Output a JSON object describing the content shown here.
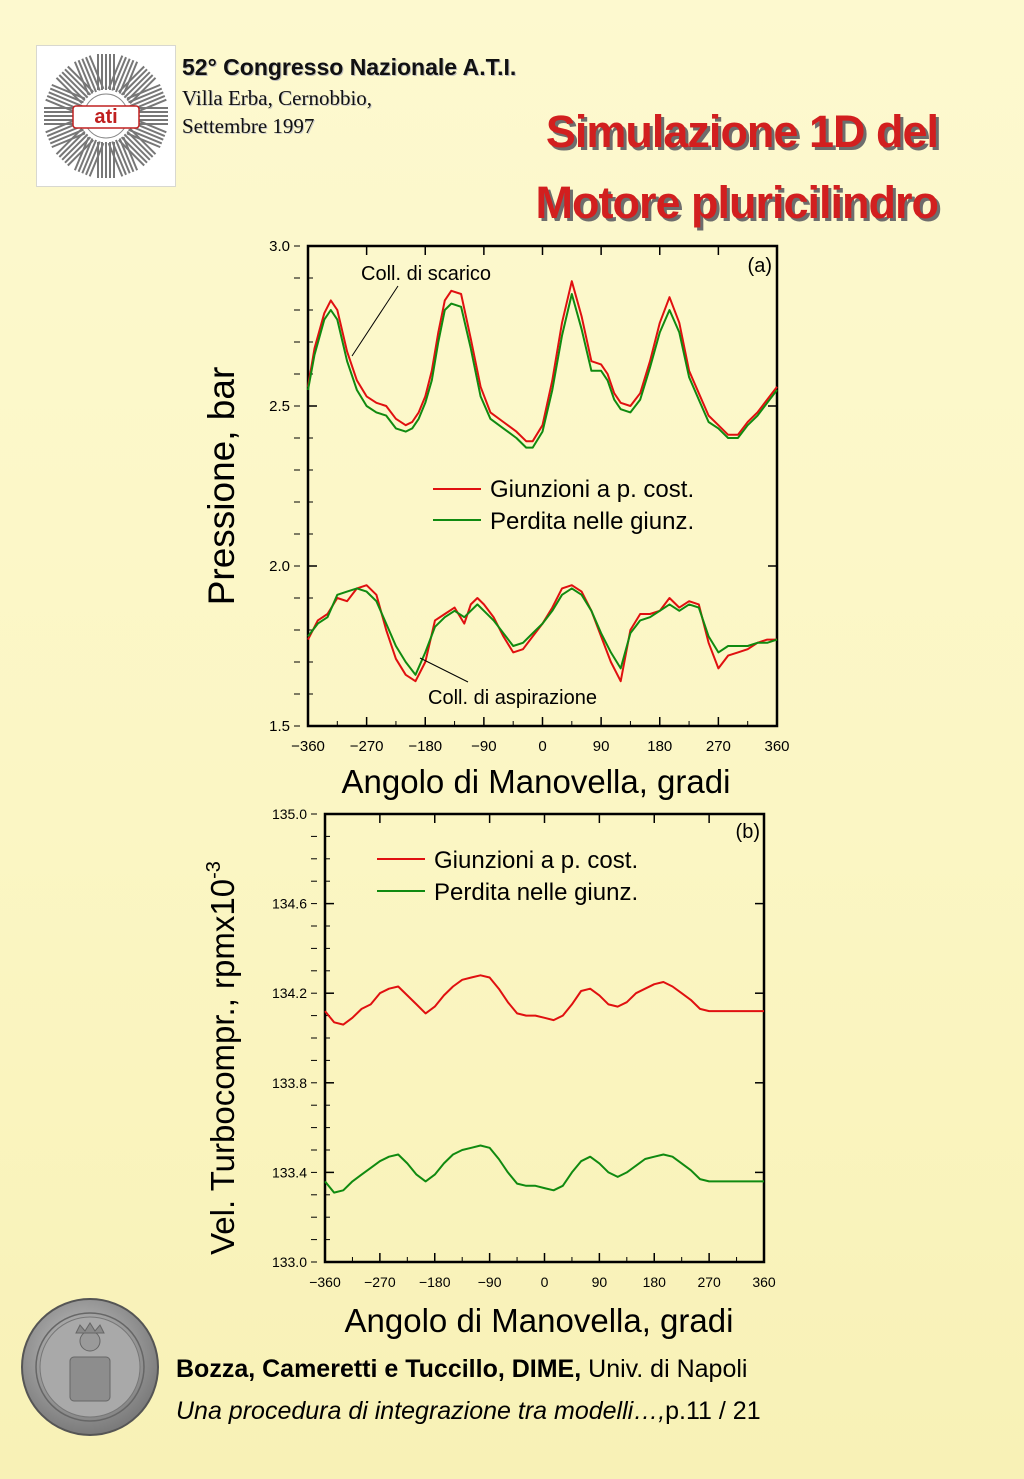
{
  "header": {
    "conference": "52° Congresso Nazionale A.T.I.",
    "location": "Villa Erba, Cernobbio,",
    "date": "Settembre 1997",
    "logo_text": "ati",
    "title_line1": "Simulazione 1D del",
    "title_line2": "Motore pluricilindro"
  },
  "footer": {
    "authors": "Bozza, Cameretti e Tuccillo, DIME,",
    "university": " Univ. di Napoli",
    "paper": "Una procedura di integrazione tra modelli…,",
    "page": "p.11 / 21"
  },
  "colors": {
    "red": "#e01010",
    "green": "#108a10",
    "title": "#d21f1f"
  },
  "chart_data": [
    {
      "type": "line",
      "panel": "(a)",
      "xlabel": "Angolo di Manovella, gradi",
      "ylabel": "Pressione, bar",
      "xlim": [
        -360,
        360
      ],
      "ylim": [
        1.5,
        3.0
      ],
      "xticks": [
        -360,
        -270,
        -180,
        -90,
        0,
        90,
        180,
        270,
        360
      ],
      "xtick_labels": [
        "−360",
        "−270",
        "−180",
        "−90",
        "0",
        "90",
        "180",
        "270",
        "360"
      ],
      "yticks": [
        1.5,
        2.0,
        2.5,
        3.0
      ],
      "ytick_labels": [
        "1.5",
        "2.0",
        "2.5",
        "3.0"
      ],
      "legend": [
        "Giunzioni a p. cost.",
        "Perdita nelle giunz."
      ],
      "legend_position": "center-right",
      "annotations": [
        "Coll. di scarico",
        "Coll. di aspirazione"
      ],
      "series": [
        {
          "name": "Giunzioni a p. cost.",
          "color": "#e01010",
          "x": [
            -360,
            -350,
            -335,
            -325,
            -315,
            -300,
            -285,
            -270,
            -255,
            -240,
            -225,
            -210,
            -200,
            -190,
            -180,
            -170,
            -160,
            -150,
            -140,
            -125,
            -110,
            -95,
            -80,
            -60,
            -40,
            -25,
            -15,
            0,
            15,
            30,
            45,
            60,
            75,
            90,
            100,
            110,
            120,
            135,
            150,
            165,
            180,
            195,
            210,
            225,
            240,
            255,
            270,
            285,
            300,
            315,
            330,
            345,
            360
          ],
          "values": [
            2.56,
            2.68,
            2.79,
            2.83,
            2.8,
            2.67,
            2.58,
            2.53,
            2.51,
            2.5,
            2.46,
            2.44,
            2.45,
            2.48,
            2.53,
            2.61,
            2.73,
            2.83,
            2.86,
            2.85,
            2.71,
            2.56,
            2.48,
            2.45,
            2.42,
            2.39,
            2.39,
            2.44,
            2.58,
            2.76,
            2.89,
            2.78,
            2.64,
            2.63,
            2.6,
            2.54,
            2.51,
            2.5,
            2.54,
            2.64,
            2.76,
            2.84,
            2.76,
            2.61,
            2.54,
            2.47,
            2.44,
            2.41,
            2.41,
            2.45,
            2.48,
            2.52,
            2.56
          ]
        },
        {
          "name": "Perdita nelle giunz.",
          "color": "#108a10",
          "x": [
            -360,
            -350,
            -335,
            -325,
            -315,
            -300,
            -285,
            -270,
            -255,
            -240,
            -225,
            -210,
            -200,
            -190,
            -180,
            -170,
            -160,
            -150,
            -140,
            -125,
            -110,
            -95,
            -80,
            -60,
            -40,
            -25,
            -15,
            0,
            15,
            30,
            45,
            60,
            75,
            90,
            100,
            110,
            120,
            135,
            150,
            165,
            180,
            195,
            210,
            225,
            240,
            255,
            270,
            285,
            300,
            315,
            330,
            345,
            360
          ],
          "values": [
            2.55,
            2.66,
            2.77,
            2.8,
            2.77,
            2.64,
            2.55,
            2.5,
            2.48,
            2.47,
            2.43,
            2.42,
            2.43,
            2.46,
            2.51,
            2.58,
            2.7,
            2.8,
            2.82,
            2.81,
            2.68,
            2.53,
            2.46,
            2.43,
            2.4,
            2.37,
            2.37,
            2.42,
            2.55,
            2.72,
            2.85,
            2.74,
            2.61,
            2.61,
            2.58,
            2.52,
            2.49,
            2.48,
            2.52,
            2.62,
            2.73,
            2.8,
            2.73,
            2.59,
            2.52,
            2.45,
            2.43,
            2.4,
            2.4,
            2.44,
            2.47,
            2.51,
            2.55
          ]
        },
        {
          "name": "Giunzioni a p. cost.",
          "color": "#e01010",
          "x": [
            -360,
            -345,
            -330,
            -315,
            -300,
            -285,
            -270,
            -255,
            -240,
            -225,
            -210,
            -195,
            -180,
            -165,
            -150,
            -135,
            -120,
            -110,
            -100,
            -90,
            -75,
            -60,
            -45,
            -30,
            -15,
            0,
            15,
            30,
            45,
            60,
            75,
            90,
            105,
            120,
            135,
            150,
            165,
            180,
            195,
            210,
            225,
            240,
            255,
            270,
            285,
            300,
            315,
            330,
            345,
            360
          ],
          "values": [
            1.77,
            1.83,
            1.85,
            1.9,
            1.89,
            1.93,
            1.94,
            1.91,
            1.8,
            1.71,
            1.66,
            1.64,
            1.7,
            1.83,
            1.85,
            1.87,
            1.82,
            1.88,
            1.9,
            1.88,
            1.84,
            1.78,
            1.73,
            1.74,
            1.78,
            1.82,
            1.87,
            1.93,
            1.94,
            1.92,
            1.86,
            1.78,
            1.7,
            1.64,
            1.8,
            1.85,
            1.85,
            1.86,
            1.9,
            1.87,
            1.89,
            1.88,
            1.76,
            1.68,
            1.72,
            1.73,
            1.74,
            1.76,
            1.77,
            1.77
          ]
        },
        {
          "name": "Perdita nelle giunz.",
          "color": "#108a10",
          "x": [
            -360,
            -345,
            -330,
            -315,
            -300,
            -285,
            -270,
            -255,
            -240,
            -225,
            -210,
            -195,
            -180,
            -165,
            -150,
            -135,
            -120,
            -110,
            -100,
            -90,
            -75,
            -60,
            -45,
            -30,
            -15,
            0,
            15,
            30,
            45,
            60,
            75,
            90,
            105,
            120,
            135,
            150,
            165,
            180,
            195,
            210,
            225,
            240,
            255,
            270,
            285,
            300,
            315,
            330,
            345,
            360
          ],
          "values": [
            1.78,
            1.82,
            1.84,
            1.91,
            1.92,
            1.93,
            1.92,
            1.89,
            1.82,
            1.75,
            1.7,
            1.66,
            1.73,
            1.81,
            1.84,
            1.86,
            1.84,
            1.86,
            1.88,
            1.86,
            1.83,
            1.79,
            1.75,
            1.76,
            1.79,
            1.82,
            1.86,
            1.91,
            1.93,
            1.91,
            1.86,
            1.79,
            1.73,
            1.68,
            1.79,
            1.83,
            1.84,
            1.86,
            1.88,
            1.86,
            1.88,
            1.87,
            1.78,
            1.73,
            1.75,
            1.75,
            1.75,
            1.76,
            1.76,
            1.77
          ]
        }
      ]
    },
    {
      "type": "line",
      "panel": "(b)",
      "xlabel": "Angolo di Manovella, gradi",
      "ylabel": "Vel. Turbocompr., rpmx10",
      "ylabel_exp": "-3",
      "xlim": [
        -360,
        360
      ],
      "ylim": [
        133.0,
        135.0
      ],
      "xticks": [
        -360,
        -270,
        -180,
        -90,
        0,
        90,
        180,
        270,
        360
      ],
      "xtick_labels": [
        "−360",
        "−270",
        "−180",
        "−90",
        "0",
        "90",
        "180",
        "270",
        "360"
      ],
      "yticks": [
        133.0,
        133.4,
        133.8,
        134.2,
        134.6,
        135.0
      ],
      "ytick_labels": [
        "133.0",
        "133.4",
        "133.8",
        "134.2",
        "134.6",
        "135.0"
      ],
      "legend": [
        "Giunzioni a p. cost.",
        "Perdita nelle giunz."
      ],
      "legend_position": "top-center",
      "series": [
        {
          "name": "Giunzioni a p. cost.",
          "color": "#e01010",
          "x": [
            -360,
            -345,
            -330,
            -315,
            -300,
            -285,
            -270,
            -255,
            -240,
            -225,
            -210,
            -195,
            -180,
            -165,
            -150,
            -135,
            -120,
            -105,
            -90,
            -75,
            -60,
            -45,
            -30,
            -15,
            0,
            15,
            30,
            45,
            60,
            75,
            90,
            105,
            120,
            135,
            150,
            165,
            180,
            195,
            210,
            225,
            240,
            255,
            270,
            285,
            300,
            315,
            330,
            345,
            360
          ],
          "values": [
            134.12,
            134.07,
            134.06,
            134.09,
            134.13,
            134.15,
            134.2,
            134.22,
            134.23,
            134.19,
            134.15,
            134.11,
            134.14,
            134.19,
            134.23,
            134.26,
            134.27,
            134.28,
            134.27,
            134.22,
            134.16,
            134.11,
            134.1,
            134.1,
            134.09,
            134.08,
            134.1,
            134.15,
            134.21,
            134.22,
            134.19,
            134.15,
            134.14,
            134.16,
            134.2,
            134.22,
            134.24,
            134.25,
            134.23,
            134.2,
            134.17,
            134.13,
            134.12,
            134.12,
            134.12,
            134.12,
            134.12,
            134.12,
            134.12
          ]
        },
        {
          "name": "Perdita nelle giunz.",
          "color": "#108a10",
          "x": [
            -360,
            -345,
            -330,
            -315,
            -300,
            -285,
            -270,
            -255,
            -240,
            -225,
            -210,
            -195,
            -180,
            -165,
            -150,
            -135,
            -120,
            -105,
            -90,
            -75,
            -60,
            -45,
            -30,
            -15,
            0,
            15,
            30,
            45,
            60,
            75,
            90,
            105,
            120,
            135,
            150,
            165,
            180,
            195,
            210,
            225,
            240,
            255,
            270,
            285,
            300,
            315,
            330,
            345,
            360
          ],
          "values": [
            133.36,
            133.31,
            133.32,
            133.36,
            133.39,
            133.42,
            133.45,
            133.47,
            133.48,
            133.44,
            133.39,
            133.36,
            133.39,
            133.44,
            133.48,
            133.5,
            133.51,
            133.52,
            133.51,
            133.46,
            133.4,
            133.35,
            133.34,
            133.34,
            133.33,
            133.32,
            133.34,
            133.4,
            133.45,
            133.47,
            133.44,
            133.4,
            133.38,
            133.4,
            133.43,
            133.46,
            133.47,
            133.48,
            133.47,
            133.44,
            133.41,
            133.37,
            133.36,
            133.36,
            133.36,
            133.36,
            133.36,
            133.36,
            133.36
          ]
        }
      ]
    }
  ]
}
